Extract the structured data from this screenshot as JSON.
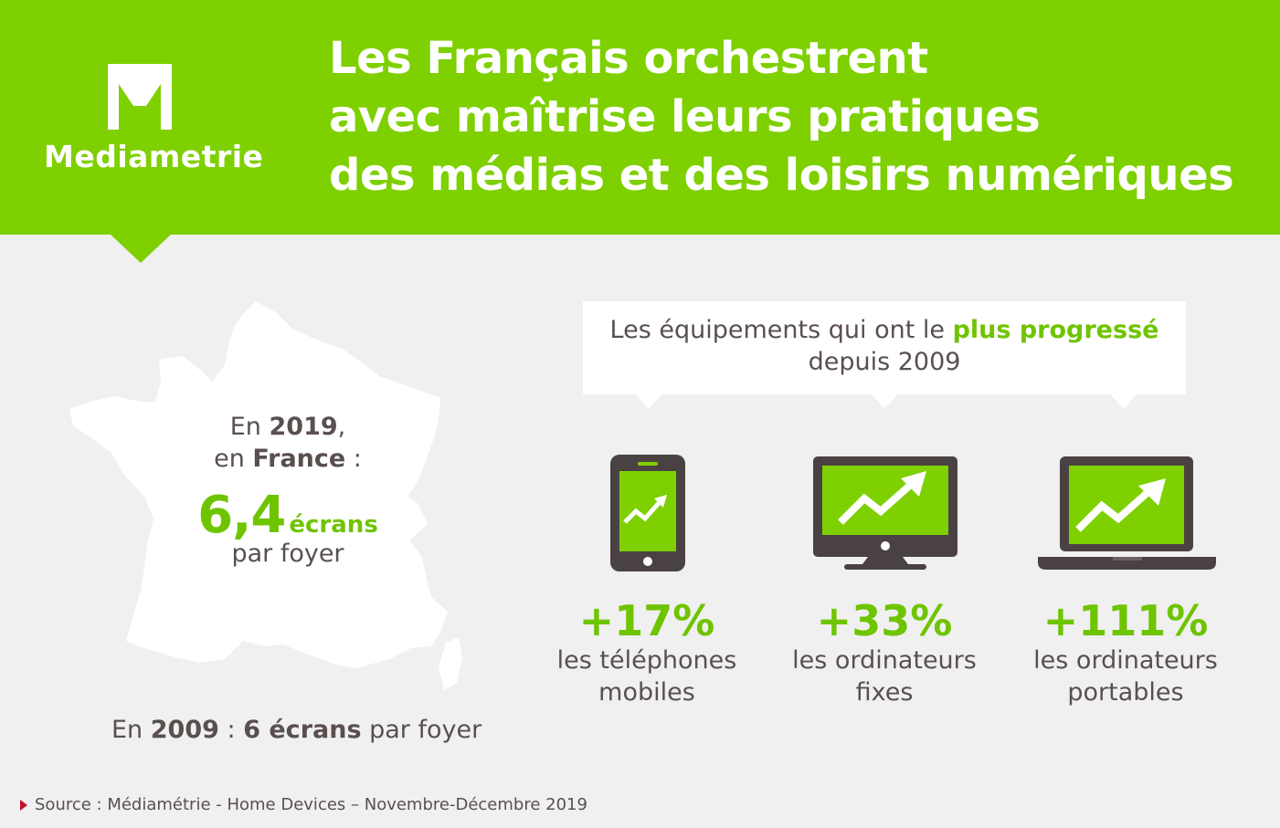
{
  "brand": {
    "name": "Mediametrie",
    "accent": "#7ed000",
    "text_color": "#5a4f4f"
  },
  "title_lines": [
    "Les Français orchestrent",
    "avec maîtrise leurs pratiques",
    "des médias et des loisirs numériques"
  ],
  "map_block": {
    "intro_1_prefix": "En ",
    "intro_1_year": "2019",
    "intro_1_suffix": ",",
    "intro_2_prefix": "en ",
    "intro_2_country": "France",
    "intro_2_suffix": " :",
    "value": "6,4",
    "unit": "écrans",
    "per": "par foyer"
  },
  "past": {
    "prefix": "En ",
    "year": "2009",
    "sep": " : ",
    "value": "6 écrans",
    "suffix": " par foyer"
  },
  "callout": {
    "part1": "Les équipements qui ont le ",
    "highlight": "plus progressé",
    "part2": " depuis 2009"
  },
  "devices": [
    {
      "icon": "smartphone-trend-icon",
      "pct": "+17%",
      "line1": "les téléphones",
      "line2": "mobiles"
    },
    {
      "icon": "desktop-monitor-trend-icon",
      "pct": "+33%",
      "line1": "les ordinateurs",
      "line2": "fixes"
    },
    {
      "icon": "laptop-trend-icon",
      "pct": "+111%",
      "line1": "les ordinateurs",
      "line2": "portables"
    }
  ],
  "source": "Source : Médiamétrie - Home Devices – Novembre-Décembre 2019"
}
